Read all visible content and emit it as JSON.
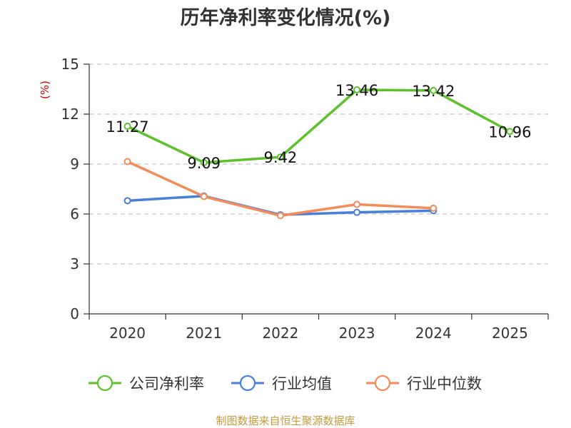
{
  "chart_data": {
    "type": "line",
    "title": "历年净利率变化情况(%)",
    "ylabel": "(%)",
    "xlabel": "",
    "categories": [
      "2020",
      "2021",
      "2022",
      "2023",
      "2024",
      "2025"
    ],
    "ylim": [
      0,
      15
    ],
    "yticks": [
      0,
      3,
      6,
      9,
      12,
      15
    ],
    "grid": true,
    "legend_position": "bottom",
    "series": [
      {
        "name": "公司净利率",
        "color": "#5cc12a",
        "values": [
          11.27,
          9.09,
          9.42,
          13.46,
          13.42,
          10.96
        ],
        "labels": [
          "11.27",
          "9.09",
          "9.42",
          "13.46",
          "13.42",
          "10.96"
        ]
      },
      {
        "name": "行业均值",
        "color": "#4a7fd9",
        "values": [
          6.8,
          7.08,
          5.95,
          6.1,
          6.2,
          null
        ],
        "labels": []
      },
      {
        "name": "行业中位数",
        "color": "#f38c59",
        "values": [
          9.15,
          7.05,
          5.9,
          6.58,
          6.35,
          null
        ],
        "labels": []
      }
    ]
  },
  "source": "制图数据来自恒生聚源数据库"
}
